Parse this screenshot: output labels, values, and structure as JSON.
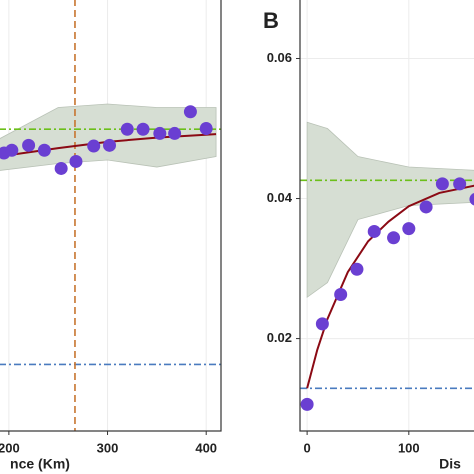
{
  "chart_data": [
    {
      "type": "scatter",
      "x_label": "nce (Km)",
      "x": [
        195,
        203,
        220,
        236,
        253,
        268,
        286,
        302,
        320,
        336,
        353,
        368,
        384,
        400
      ],
      "values": [
        0.0465,
        0.0469,
        0.0476,
        0.0469,
        0.0443,
        0.0453,
        0.0475,
        0.0476,
        0.0499,
        0.0499,
        0.0493,
        0.0493,
        0.0524,
        0.05
      ],
      "color": "#6a3fd2",
      "fit": {
        "x": [
          190,
          250,
          300,
          350,
          410
        ],
        "values": [
          0.046,
          0.0472,
          0.0481,
          0.0487,
          0.0492
        ],
        "color": "#8b0a14"
      },
      "band": {
        "x": [
          190,
          250,
          300,
          350,
          410
        ],
        "upper": [
          0.0485,
          0.053,
          0.0535,
          0.053,
          0.053
        ],
        "lower": [
          0.044,
          0.045,
          0.0455,
          0.0445,
          0.046
        ],
        "color": "#d6ded3"
      },
      "hlines": [
        {
          "value": 0.0499,
          "color": "#6cbf1a"
        },
        {
          "value": 0.0163,
          "color": "#4a7bbf"
        }
      ],
      "vlines": [
        {
          "value": 267,
          "color": "#c7742f"
        }
      ],
      "xlim": [
        190,
        415
      ],
      "ylim": [
        0.0068,
        0.0685
      ],
      "xticks": [
        200,
        300,
        400
      ],
      "grid": true
    },
    {
      "type": "scatter",
      "panel": "B",
      "x_label": "Dis",
      "x": [
        0,
        15,
        33,
        49,
        66,
        85,
        100,
        117,
        133,
        150,
        166
      ],
      "values": [
        0.0106,
        0.0221,
        0.0263,
        0.0299,
        0.0353,
        0.0344,
        0.0357,
        0.0388,
        0.0421,
        0.0421,
        0.0399
      ],
      "color": "#6a3fd2",
      "fit": {
        "x": [
          0,
          10,
          20,
          40,
          60,
          80,
          100,
          130,
          170
        ],
        "values": [
          0.0129,
          0.0184,
          0.0228,
          0.0295,
          0.0339,
          0.0367,
          0.0389,
          0.0408,
          0.042
        ],
        "color": "#8b0a14"
      },
      "band": {
        "x": [
          0,
          20,
          50,
          100,
          170
        ],
        "upper": [
          0.0509,
          0.05,
          0.046,
          0.0445,
          0.044
        ],
        "lower": [
          0.0259,
          0.028,
          0.037,
          0.039,
          0.0395
        ],
        "color": "#d6ded3"
      },
      "hlines": [
        {
          "value": 0.0426,
          "color": "#6cbf1a"
        },
        {
          "value": 0.0129,
          "color": "#4a7bbf"
        }
      ],
      "vlines": [],
      "xlim": [
        -7,
        170
      ],
      "ylim": [
        0.0068,
        0.0685
      ],
      "xticks": [
        0,
        100
      ],
      "yticks": [
        0.02,
        0.04,
        0.06
      ],
      "grid": true
    }
  ]
}
